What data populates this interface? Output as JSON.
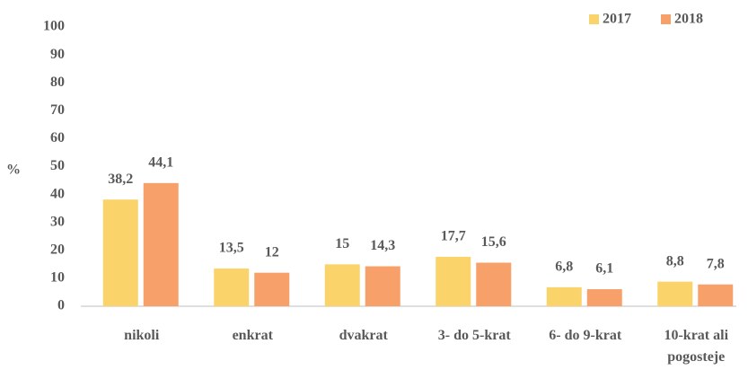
{
  "chart_data": {
    "type": "bar",
    "y_label": "%",
    "categories": [
      "nikoli",
      "enkrat",
      "dvakrat",
      "3- do 5-krat",
      "6- do 9-krat",
      "10-krat ali pogosteje"
    ],
    "series": [
      {
        "name": "2017",
        "color": "#fbd36b",
        "values": [
          38.2,
          13.5,
          15,
          17.7,
          6.8,
          8.8
        ],
        "value_labels": [
          "38,2",
          "13,5",
          "15",
          "17,7",
          "6,8",
          "8,8"
        ]
      },
      {
        "name": "2018",
        "color": "#f8a06a",
        "values": [
          44.1,
          12,
          14.3,
          15.6,
          6.1,
          7.8
        ],
        "value_labels": [
          "44,1",
          "12",
          "14,3",
          "15,6",
          "6,1",
          "7,8"
        ]
      }
    ],
    "ylim": [
      0,
      100
    ],
    "yticks": [
      0,
      10,
      20,
      30,
      40,
      50,
      60,
      70,
      80,
      90,
      100
    ],
    "grid": false,
    "legend": "top-right"
  }
}
